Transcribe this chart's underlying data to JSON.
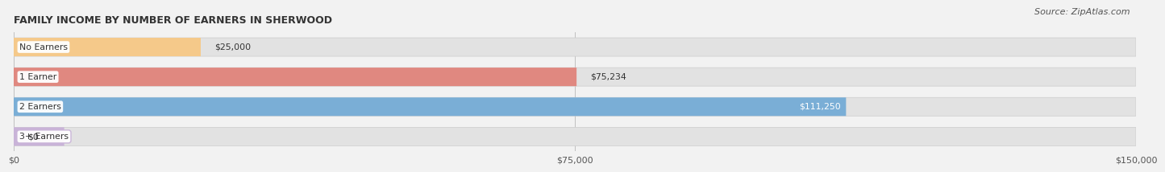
{
  "title": "FAMILY INCOME BY NUMBER OF EARNERS IN SHERWOOD",
  "source": "Source: ZipAtlas.com",
  "categories": [
    "No Earners",
    "1 Earner",
    "2 Earners",
    "3+ Earners"
  ],
  "values": [
    25000,
    75234,
    111250,
    0
  ],
  "labels": [
    "$25,000",
    "$75,234",
    "$111,250",
    "$0"
  ],
  "label_inside": [
    false,
    false,
    true,
    false
  ],
  "bar_colors": [
    "#f5c98a",
    "#e08880",
    "#7aaed6",
    "#c9b3d8"
  ],
  "bar_bg_color": "#e2e2e2",
  "category_colors": [
    "#f5c98a",
    "#e08880",
    "#7aaed6",
    "#c9b3d8"
  ],
  "xlim_max": 150000,
  "xticks": [
    0,
    75000,
    150000
  ],
  "xticklabels": [
    "$0",
    "$75,000",
    "$150,000"
  ],
  "fig_width": 14.06,
  "fig_height": 2.32,
  "background_color": "#f2f2f2",
  "title_fontsize": 9,
  "source_fontsize": 8,
  "bar_height": 0.62,
  "bar_gap": 0.12
}
